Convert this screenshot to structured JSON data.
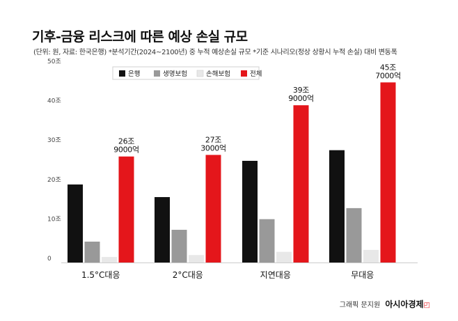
{
  "header": {
    "title": "기후-금융 리스크에 따른 예상 손실 규모",
    "subtitle": "(단위: 원, 자료: 한국은행) *분석기간(2024~2100년) 중 누적 예상손실 규모 *기준 시나리오(정상 상황시 누적 손실) 대비 변동폭"
  },
  "footer": {
    "credit": "그래픽 문지원",
    "brand": "아시아경제"
  },
  "chart_data": {
    "type": "bar",
    "categories": [
      "1.5°C대응",
      "2°C대응",
      "지연대응",
      "무대응"
    ],
    "yticks": [
      "0",
      "10조",
      "20조",
      "30조",
      "40조",
      "50조"
    ],
    "ylim": [
      0,
      50
    ],
    "series": [
      {
        "name": "은행",
        "color": "#111111",
        "values": [
          19.8,
          16.6,
          25.8,
          28.5
        ]
      },
      {
        "name": "생명보험",
        "color": "#999999",
        "values": [
          5.3,
          8.3,
          11.0,
          13.8
        ]
      },
      {
        "name": "손해보험",
        "color": "#e8e8e8",
        "values": [
          1.4,
          1.9,
          2.7,
          3.2
        ]
      },
      {
        "name": "전체",
        "color": "#e4161b",
        "values": [
          26.9,
          27.3,
          39.9,
          45.7
        ]
      }
    ],
    "data_labels": [
      [
        "26조",
        "9000억"
      ],
      [
        "27조",
        "3000억"
      ],
      [
        "39조",
        "9000억"
      ],
      [
        "45조",
        "7000억"
      ]
    ],
    "legend": "top-left",
    "grid": false
  }
}
